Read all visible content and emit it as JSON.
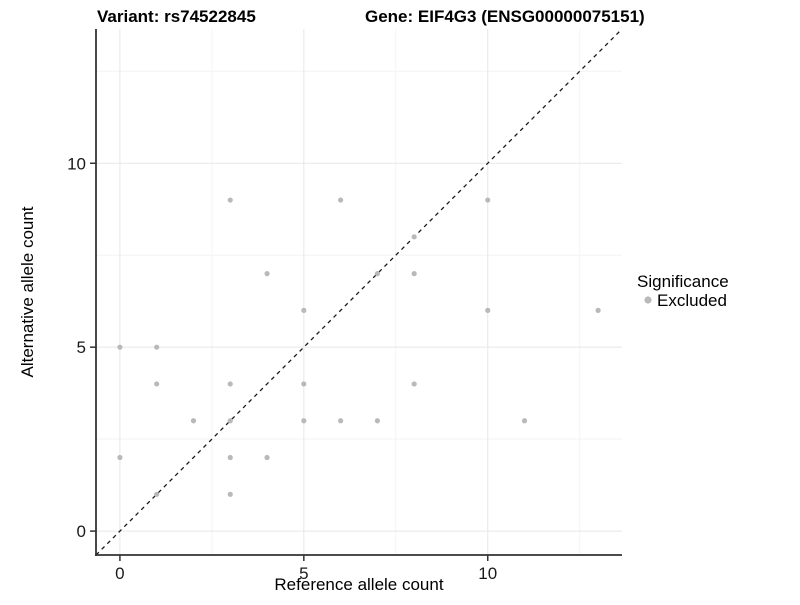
{
  "titles": {
    "left": "Variant: rs74522845",
    "right": "Gene: EIF4G3 (ENSG00000075151)"
  },
  "axes": {
    "x_label": "Reference allele count",
    "y_label": "Alternative allele count",
    "x_tick_labels": [
      "0",
      "5",
      "10"
    ],
    "y_tick_labels": [
      "0",
      "5",
      "10"
    ]
  },
  "legend": {
    "title": "Significance",
    "items": [
      {
        "label": "Excluded",
        "color": "#b9b9b9",
        "marker": "dot"
      }
    ]
  },
  "colors": {
    "point": "#b9b9b9",
    "identity_line": "#1a1a1a",
    "axis_line": "#333333",
    "tick_text": "#1a1a1a",
    "grid_major": "#e7e7e7",
    "grid_minor": "#f3f3f3",
    "background": "#ffffff"
  },
  "chart_data": {
    "type": "scatter",
    "title": "Variant: rs74522845 — Gene: EIF4G3 (ENSG00000075151)",
    "xlabel": "Reference allele count",
    "ylabel": "Alternative allele count",
    "xlim": [
      -0.65,
      13.65
    ],
    "ylim": [
      -0.65,
      13.65
    ],
    "x_ticks": [
      0,
      5,
      10
    ],
    "y_ticks": [
      0,
      5,
      10
    ],
    "x_minor_ticks": [
      2.5,
      7.5,
      12.5
    ],
    "y_minor_ticks": [
      2.5,
      7.5,
      12.5
    ],
    "grid": "major+minor",
    "legend_position": "right",
    "identity_line": {
      "style": "dashed",
      "intercept": 0,
      "slope": 1
    },
    "series": [
      {
        "name": "Excluded",
        "color": "#b9b9b9",
        "points": [
          [
            0,
            2
          ],
          [
            0,
            5
          ],
          [
            1,
            1
          ],
          [
            1,
            4
          ],
          [
            1,
            5
          ],
          [
            2,
            3
          ],
          [
            3,
            1
          ],
          [
            3,
            2
          ],
          [
            3,
            3
          ],
          [
            3,
            4
          ],
          [
            3,
            9
          ],
          [
            4,
            2
          ],
          [
            4,
            7
          ],
          [
            5,
            3
          ],
          [
            5,
            4
          ],
          [
            5,
            6
          ],
          [
            6,
            3
          ],
          [
            6,
            9
          ],
          [
            7,
            3
          ],
          [
            7,
            7
          ],
          [
            8,
            4
          ],
          [
            8,
            7
          ],
          [
            8,
            8
          ],
          [
            10,
            6
          ],
          [
            10,
            9
          ],
          [
            11,
            3
          ],
          [
            13,
            6
          ]
        ]
      }
    ]
  }
}
